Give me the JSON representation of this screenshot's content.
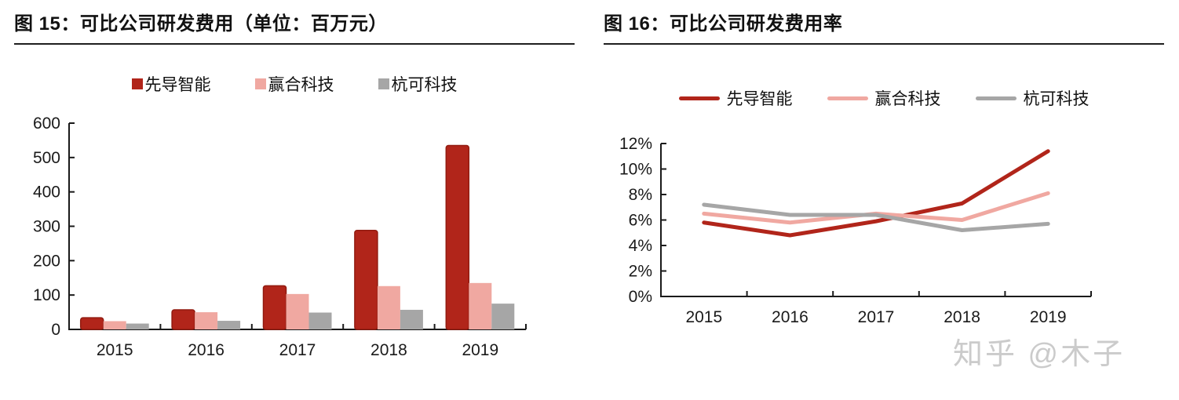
{
  "panels": {
    "left": {
      "title": "图 15：可比公司研发费用（单位：百万元）"
    },
    "right": {
      "title": "图 16：可比公司研发费用率"
    }
  },
  "watermark": {
    "text": "知乎 @木子"
  },
  "colors": {
    "series_xiandao": "#b1251a",
    "series_xiandao_border": "#921b10",
    "series_yinghe": "#f0a8a1",
    "series_hangke": "#a6a6a6",
    "axis": "#1a1a1a",
    "watermark": "#cbcbcb"
  },
  "chart_data": [
    {
      "type": "bar",
      "title": "图 15：可比公司研发费用（单位：百万元）",
      "categories": [
        "2015",
        "2016",
        "2017",
        "2018",
        "2019"
      ],
      "series": [
        {
          "name": "先导智能",
          "color": "#b1251a",
          "border": "#921b10",
          "values": [
            34,
            57,
            127,
            288,
            535
          ]
        },
        {
          "name": "赢合科技",
          "color": "#f0a8a1",
          "values": [
            24,
            50,
            103,
            126,
            135
          ]
        },
        {
          "name": "杭可科技",
          "color": "#a6a6a6",
          "values": [
            17,
            25,
            49,
            57,
            75
          ]
        }
      ],
      "xlabel": "",
      "ylabel": "",
      "ylim": [
        0,
        600
      ],
      "ytick_labels": [
        "0",
        "100",
        "200",
        "300",
        "400",
        "500",
        "600"
      ],
      "grid": false,
      "legend_position": "top"
    },
    {
      "type": "line",
      "title": "图 16：可比公司研发费用率",
      "categories": [
        "2015",
        "2016",
        "2017",
        "2018",
        "2019"
      ],
      "series": [
        {
          "name": "先导智能",
          "color": "#b1251a",
          "values": [
            5.8,
            4.8,
            5.9,
            7.3,
            11.4
          ]
        },
        {
          "name": "赢合科技",
          "color": "#f0a8a1",
          "values": [
            6.5,
            5.8,
            6.5,
            6.0,
            8.1
          ]
        },
        {
          "name": "杭可科技",
          "color": "#a6a6a6",
          "values": [
            7.2,
            6.4,
            6.4,
            5.2,
            5.7
          ]
        }
      ],
      "xlabel": "",
      "ylabel": "",
      "ylim": [
        0,
        12
      ],
      "ytick_labels": [
        "0%",
        "2%",
        "4%",
        "6%",
        "8%",
        "10%",
        "12%"
      ],
      "unit": "percent",
      "grid": false,
      "legend_position": "top"
    }
  ]
}
